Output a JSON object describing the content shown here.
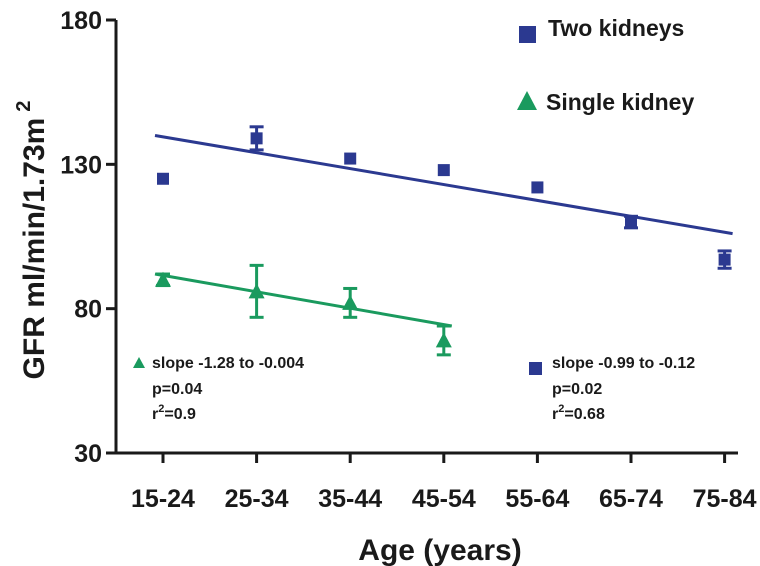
{
  "chart_data": {
    "type": "scatter",
    "title": "",
    "xlabel": "Age (years)",
    "ylabel": "GFR ml/min/1.73m",
    "ylabel_superscript": "2",
    "categories": [
      "15-24",
      "25-34",
      "35-44",
      "45-54",
      "55-64",
      "65-74",
      "75-84"
    ],
    "ylim": [
      30,
      180
    ],
    "yticks": [
      30,
      80,
      130,
      180
    ],
    "grid": false,
    "legend_position": "top-right",
    "series": [
      {
        "name": "Two kidneys",
        "marker": "square",
        "color": "#2B3990",
        "values": [
          125,
          139,
          132,
          128,
          122,
          110,
          97
        ],
        "errors": [
          0,
          4,
          0,
          0,
          0,
          2,
          3
        ],
        "trend": {
          "start": 140,
          "end": 106
        },
        "stats": {
          "slope": "slope -0.99 to -0.12",
          "p": "p=0.02",
          "r2_value": "=0.68"
        }
      },
      {
        "name": "Single kidney",
        "marker": "triangle",
        "color": "#1A9A5E",
        "values": [
          90,
          86,
          82,
          69
        ],
        "errors": [
          2,
          9,
          5,
          5
        ],
        "trend": {
          "start": 92,
          "end": 74
        },
        "stats": {
          "slope": "slope -1.28 to -0.004",
          "p": "p=0.04",
          "r2_value": "=0.9"
        }
      }
    ],
    "r_label": "r",
    "r_superscript": "2"
  }
}
